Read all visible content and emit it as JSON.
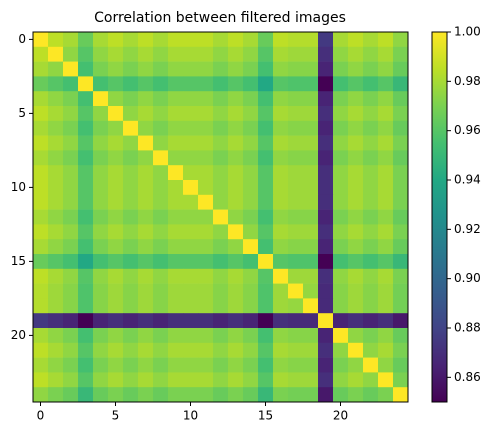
{
  "chart_data": {
    "type": "heatmap",
    "title": "Correlation between filtered images",
    "colormap": "viridis",
    "clim": [
      0.85,
      1.0
    ],
    "xlim": [
      -0.5,
      24.5
    ],
    "ylim": [
      24.5,
      -0.5
    ],
    "xticks": [
      0,
      5,
      10,
      15,
      20
    ],
    "yticks": [
      0,
      5,
      10,
      15,
      20
    ],
    "cticks": [
      0.86,
      0.88,
      {
        "value": 0.9,
        "label": "0.90"
      },
      0.92,
      0.94,
      0.96,
      0.98,
      {
        "value": 1,
        "label": "1.00"
      }
    ],
    "z": [
      [
        1,
        0.985,
        0.98,
        0.965,
        0.98,
        0.985,
        0.98,
        0.985,
        0.98,
        0.985,
        0.985,
        0.985,
        0.98,
        0.985,
        0.98,
        0.965,
        0.985,
        0.983,
        0.983,
        0.875,
        0.98,
        0.985,
        0.98,
        0.985,
        0.975
      ],
      [
        0.985,
        1,
        0.975,
        0.96,
        0.975,
        0.98,
        0.975,
        0.98,
        0.975,
        0.98,
        0.98,
        0.98,
        0.975,
        0.98,
        0.975,
        0.96,
        0.98,
        0.978,
        0.978,
        0.87,
        0.975,
        0.98,
        0.975,
        0.98,
        0.97
      ],
      [
        0.98,
        0.975,
        1,
        0.955,
        0.97,
        0.975,
        0.97,
        0.975,
        0.97,
        0.975,
        0.975,
        0.975,
        0.97,
        0.975,
        0.97,
        0.955,
        0.975,
        0.973,
        0.973,
        0.865,
        0.97,
        0.975,
        0.97,
        0.975,
        0.965
      ],
      [
        0.965,
        0.96,
        0.955,
        1,
        0.955,
        0.96,
        0.955,
        0.96,
        0.955,
        0.96,
        0.96,
        0.96,
        0.955,
        0.96,
        0.955,
        0.94,
        0.96,
        0.958,
        0.958,
        0.85,
        0.955,
        0.96,
        0.955,
        0.96,
        0.95
      ],
      [
        0.98,
        0.975,
        0.97,
        0.955,
        1,
        0.975,
        0.97,
        0.975,
        0.97,
        0.975,
        0.975,
        0.975,
        0.97,
        0.975,
        0.97,
        0.955,
        0.975,
        0.973,
        0.973,
        0.865,
        0.97,
        0.975,
        0.97,
        0.975,
        0.965
      ],
      [
        0.985,
        0.98,
        0.975,
        0.96,
        0.975,
        1,
        0.975,
        0.98,
        0.975,
        0.98,
        0.98,
        0.98,
        0.975,
        0.98,
        0.975,
        0.96,
        0.98,
        0.978,
        0.978,
        0.87,
        0.975,
        0.98,
        0.975,
        0.98,
        0.97
      ],
      [
        0.98,
        0.975,
        0.97,
        0.955,
        0.97,
        0.975,
        1,
        0.975,
        0.97,
        0.975,
        0.975,
        0.975,
        0.97,
        0.975,
        0.97,
        0.955,
        0.975,
        0.973,
        0.973,
        0.865,
        0.97,
        0.975,
        0.97,
        0.975,
        0.965
      ],
      [
        0.985,
        0.98,
        0.975,
        0.96,
        0.975,
        0.98,
        0.975,
        1,
        0.975,
        0.98,
        0.98,
        0.98,
        0.975,
        0.98,
        0.975,
        0.96,
        0.98,
        0.978,
        0.978,
        0.87,
        0.975,
        0.98,
        0.975,
        0.98,
        0.97
      ],
      [
        0.98,
        0.975,
        0.97,
        0.955,
        0.97,
        0.975,
        0.97,
        0.975,
        1,
        0.975,
        0.975,
        0.975,
        0.97,
        0.975,
        0.97,
        0.955,
        0.975,
        0.973,
        0.973,
        0.865,
        0.97,
        0.975,
        0.97,
        0.975,
        0.965
      ],
      [
        0.985,
        0.98,
        0.975,
        0.96,
        0.975,
        0.98,
        0.975,
        0.98,
        0.975,
        1,
        0.98,
        0.98,
        0.975,
        0.98,
        0.975,
        0.96,
        0.98,
        0.978,
        0.978,
        0.87,
        0.975,
        0.98,
        0.975,
        0.98,
        0.97
      ],
      [
        0.985,
        0.98,
        0.975,
        0.96,
        0.975,
        0.98,
        0.975,
        0.98,
        0.975,
        0.98,
        1,
        0.98,
        0.975,
        0.98,
        0.975,
        0.96,
        0.98,
        0.978,
        0.978,
        0.87,
        0.975,
        0.98,
        0.975,
        0.98,
        0.97
      ],
      [
        0.985,
        0.98,
        0.975,
        0.96,
        0.975,
        0.98,
        0.975,
        0.98,
        0.975,
        0.98,
        0.98,
        1,
        0.975,
        0.98,
        0.975,
        0.96,
        0.98,
        0.978,
        0.978,
        0.87,
        0.975,
        0.98,
        0.975,
        0.98,
        0.97
      ],
      [
        0.98,
        0.975,
        0.97,
        0.955,
        0.97,
        0.975,
        0.97,
        0.975,
        0.97,
        0.975,
        0.975,
        0.975,
        1,
        0.975,
        0.97,
        0.955,
        0.975,
        0.973,
        0.973,
        0.865,
        0.97,
        0.975,
        0.97,
        0.975,
        0.965
      ],
      [
        0.985,
        0.98,
        0.975,
        0.96,
        0.975,
        0.98,
        0.975,
        0.98,
        0.975,
        0.98,
        0.98,
        0.98,
        0.975,
        1,
        0.975,
        0.96,
        0.98,
        0.978,
        0.978,
        0.87,
        0.975,
        0.98,
        0.975,
        0.98,
        0.97
      ],
      [
        0.98,
        0.975,
        0.97,
        0.955,
        0.97,
        0.975,
        0.97,
        0.975,
        0.97,
        0.975,
        0.975,
        0.975,
        0.97,
        0.975,
        1,
        0.955,
        0.975,
        0.973,
        0.973,
        0.865,
        0.97,
        0.975,
        0.97,
        0.975,
        0.965
      ],
      [
        0.965,
        0.96,
        0.955,
        0.94,
        0.955,
        0.96,
        0.955,
        0.96,
        0.955,
        0.96,
        0.96,
        0.96,
        0.955,
        0.96,
        0.955,
        1,
        0.96,
        0.958,
        0.958,
        0.85,
        0.955,
        0.96,
        0.955,
        0.96,
        0.95
      ],
      [
        0.985,
        0.98,
        0.975,
        0.96,
        0.975,
        0.98,
        0.975,
        0.98,
        0.975,
        0.98,
        0.98,
        0.98,
        0.975,
        0.98,
        0.975,
        0.96,
        1,
        0.978,
        0.978,
        0.87,
        0.975,
        0.98,
        0.975,
        0.98,
        0.97
      ],
      [
        0.983,
        0.978,
        0.973,
        0.958,
        0.973,
        0.978,
        0.973,
        0.978,
        0.973,
        0.978,
        0.978,
        0.978,
        0.973,
        0.978,
        0.973,
        0.958,
        0.978,
        1,
        0.976,
        0.868,
        0.973,
        0.978,
        0.973,
        0.978,
        0.968
      ],
      [
        0.983,
        0.978,
        0.973,
        0.958,
        0.973,
        0.978,
        0.973,
        0.978,
        0.973,
        0.978,
        0.978,
        0.978,
        0.973,
        0.978,
        0.973,
        0.958,
        0.978,
        0.976,
        1,
        0.868,
        0.973,
        0.978,
        0.973,
        0.978,
        0.968
      ],
      [
        0.875,
        0.87,
        0.865,
        0.85,
        0.865,
        0.87,
        0.865,
        0.87,
        0.865,
        0.87,
        0.87,
        0.87,
        0.865,
        0.87,
        0.865,
        0.85,
        0.87,
        0.868,
        0.868,
        1,
        0.865,
        0.87,
        0.865,
        0.87,
        0.86
      ],
      [
        0.98,
        0.975,
        0.97,
        0.955,
        0.97,
        0.975,
        0.97,
        0.975,
        0.97,
        0.975,
        0.975,
        0.975,
        0.97,
        0.975,
        0.97,
        0.955,
        0.975,
        0.973,
        0.973,
        0.865,
        1,
        0.975,
        0.97,
        0.975,
        0.965
      ],
      [
        0.985,
        0.98,
        0.975,
        0.96,
        0.975,
        0.98,
        0.975,
        0.98,
        0.975,
        0.98,
        0.98,
        0.98,
        0.975,
        0.98,
        0.975,
        0.96,
        0.98,
        0.978,
        0.978,
        0.87,
        0.975,
        1,
        0.975,
        0.98,
        0.97
      ],
      [
        0.98,
        0.975,
        0.97,
        0.955,
        0.97,
        0.975,
        0.97,
        0.975,
        0.97,
        0.975,
        0.975,
        0.975,
        0.97,
        0.975,
        0.97,
        0.955,
        0.975,
        0.973,
        0.973,
        0.865,
        0.97,
        0.975,
        1,
        0.975,
        0.965
      ],
      [
        0.985,
        0.98,
        0.975,
        0.96,
        0.975,
        0.98,
        0.975,
        0.98,
        0.975,
        0.98,
        0.98,
        0.98,
        0.975,
        0.98,
        0.975,
        0.96,
        0.98,
        0.978,
        0.978,
        0.87,
        0.975,
        0.98,
        0.975,
        1,
        0.97
      ],
      [
        0.975,
        0.97,
        0.965,
        0.95,
        0.965,
        0.97,
        0.965,
        0.97,
        0.965,
        0.97,
        0.97,
        0.97,
        0.965,
        0.97,
        0.965,
        0.95,
        0.97,
        0.968,
        0.968,
        0.86,
        0.965,
        0.97,
        0.965,
        0.97,
        1
      ]
    ]
  }
}
